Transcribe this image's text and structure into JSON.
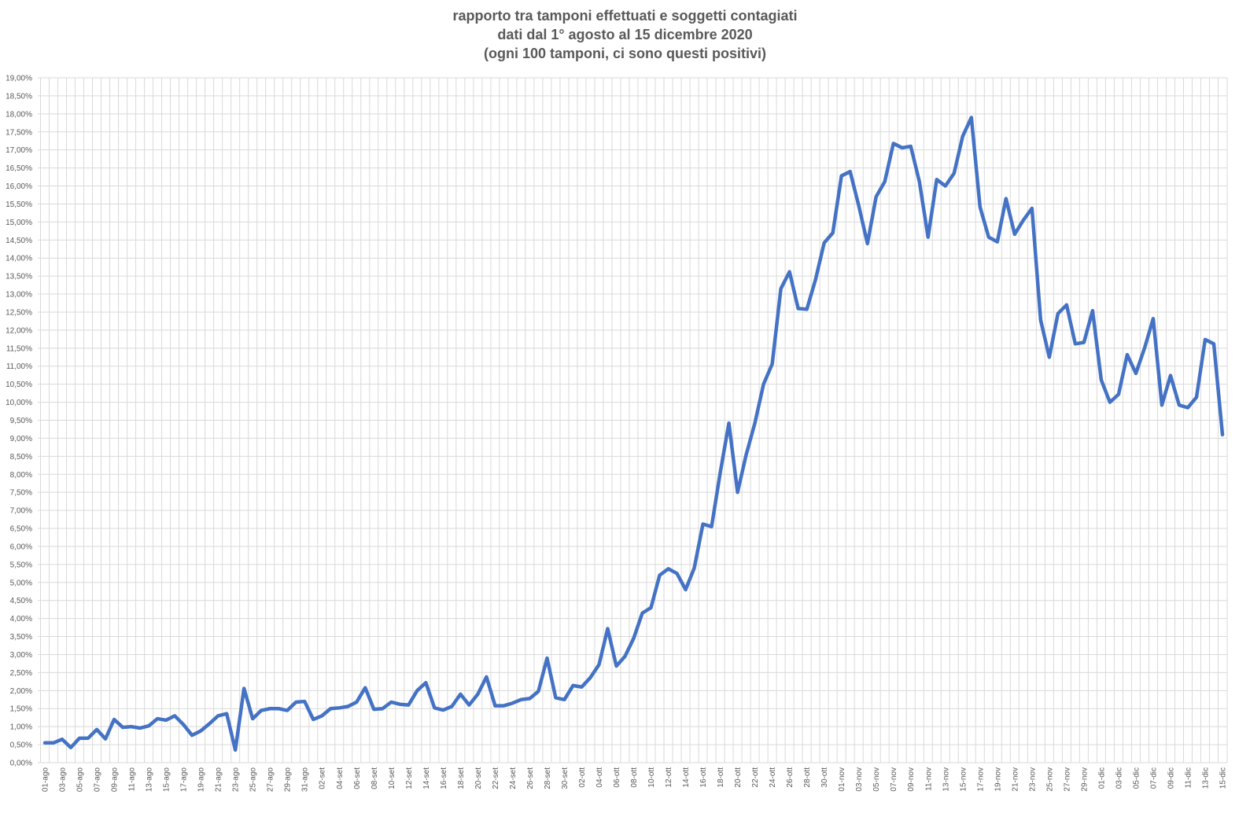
{
  "chart_data": {
    "type": "line",
    "title": [
      "rapporto tra tamponi effettuati e soggetti contagiati",
      "dati dal 1° agosto al 15 dicembre 2020",
      "(ogni 100 tamponi, ci sono questi positivi)"
    ],
    "xlabel": "",
    "ylabel": "",
    "ylim": [
      0,
      19
    ],
    "ytick_step": 0.5,
    "ytick_labels": [
      "0,00%",
      "0,50%",
      "1,00%",
      "1,50%",
      "2,00%",
      "2,50%",
      "3,00%",
      "3,50%",
      "4,00%",
      "4,50%",
      "5,00%",
      "5,50%",
      "6,00%",
      "6,50%",
      "7,00%",
      "7,50%",
      "8,00%",
      "8,50%",
      "9,00%",
      "9,50%",
      "10,00%",
      "10,50%",
      "11,00%",
      "11,50%",
      "12,00%",
      "12,50%",
      "13,00%",
      "13,50%",
      "14,00%",
      "14,50%",
      "15,00%",
      "15,50%",
      "16,00%",
      "16,50%",
      "17,00%",
      "17,50%",
      "18,00%",
      "18,50%",
      "19,00%"
    ],
    "xtick_labels": [
      "01-ago",
      "03-ago",
      "05-ago",
      "07-ago",
      "09-ago",
      "11-ago",
      "13-ago",
      "15-ago",
      "17-ago",
      "19-ago",
      "21-ago",
      "23-ago",
      "25-ago",
      "27-ago",
      "29-ago",
      "31-ago",
      "02-set",
      "04-set",
      "06-set",
      "08-set",
      "10-set",
      "12-set",
      "14-set",
      "16-set",
      "18-set",
      "20-set",
      "22-set",
      "24-set",
      "26-set",
      "28-set",
      "30-set",
      "02-ott",
      "04-ott",
      "06-ott",
      "08-ott",
      "10-ott",
      "12-ott",
      "14-ott",
      "16-ott",
      "18-ott",
      "20-ott",
      "22-ott",
      "24-ott",
      "26-ott",
      "28-ott",
      "30-ott",
      "01-nov",
      "03-nov",
      "05-nov",
      "07-nov",
      "09-nov",
      "11-nov",
      "13-nov",
      "15-nov",
      "17-nov",
      "19-nov",
      "21-nov",
      "23-nov",
      "25-nov",
      "27-nov",
      "29-nov",
      "01-dic",
      "03-dic",
      "05-dic",
      "07-dic",
      "09-dic",
      "11-dic",
      "13-dic",
      "15-dic"
    ],
    "grid": true,
    "series": [
      {
        "color": "#4472c4",
        "values": [
          0.55,
          0.55,
          0.65,
          0.42,
          0.68,
          0.68,
          0.92,
          0.66,
          1.2,
          0.98,
          1.0,
          0.96,
          1.02,
          1.22,
          1.18,
          1.3,
          1.06,
          0.76,
          0.88,
          1.08,
          1.3,
          1.36,
          0.35,
          2.06,
          1.22,
          1.45,
          1.5,
          1.5,
          1.45,
          1.68,
          1.7,
          1.2,
          1.3,
          1.5,
          1.52,
          1.56,
          1.68,
          2.08,
          1.48,
          1.5,
          1.68,
          1.62,
          1.6,
          2.0,
          2.22,
          1.52,
          1.46,
          1.56,
          1.9,
          1.6,
          1.9,
          2.38,
          1.58,
          1.58,
          1.65,
          1.75,
          1.78,
          1.98,
          2.9,
          1.8,
          1.75,
          2.14,
          2.1,
          2.36,
          2.72,
          3.72,
          2.68,
          2.95,
          3.45,
          4.15,
          4.3,
          5.2,
          5.38,
          5.25,
          4.8,
          5.4,
          6.62,
          6.55,
          8.05,
          9.42,
          7.5,
          8.55,
          9.42,
          10.5,
          11.06,
          13.15,
          13.62,
          12.6,
          12.58,
          13.4,
          14.42,
          14.7,
          16.28,
          16.4,
          15.45,
          14.4,
          15.7,
          16.12,
          17.18,
          17.06,
          17.1,
          16.12,
          14.58,
          16.18,
          16.0,
          16.35,
          17.38,
          17.9,
          15.42,
          14.58,
          14.45,
          15.65,
          14.66,
          15.05,
          15.38,
          12.28,
          11.25,
          12.46,
          12.7,
          11.62,
          11.66,
          12.54,
          10.62,
          10.0,
          10.22,
          11.32,
          10.8,
          11.5,
          12.32,
          9.92,
          10.74,
          9.92,
          9.85,
          10.14,
          11.74,
          11.62,
          9.1
        ]
      }
    ]
  }
}
